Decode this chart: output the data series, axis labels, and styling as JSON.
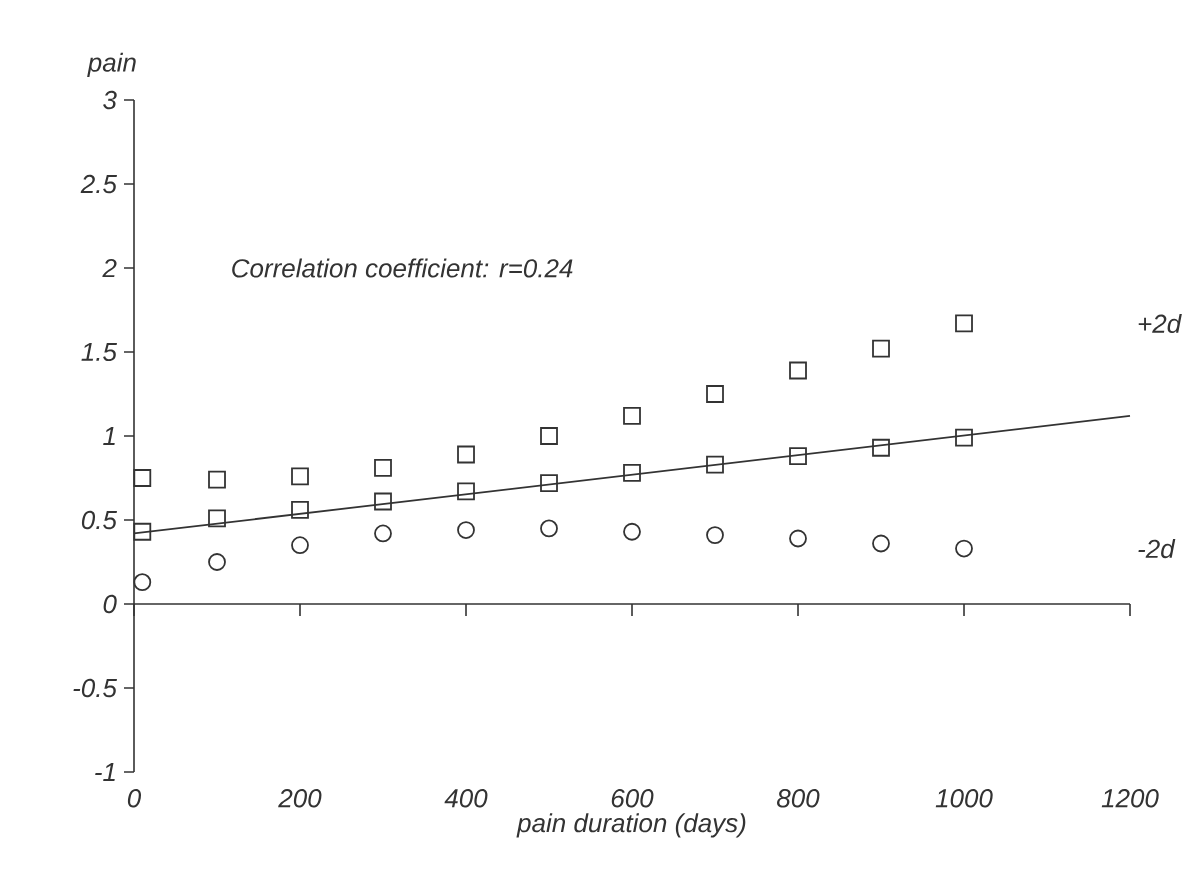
{
  "chart_data": {
    "type": "scatter",
    "xlabel": "pain duration (days)",
    "ylabel": "pain",
    "annotations": [
      "Correlation coefficient: r=0.24"
    ],
    "x": [
      10,
      100,
      200,
      300,
      400,
      500,
      600,
      700,
      800,
      900,
      1000
    ],
    "xlim": [
      0,
      1200
    ],
    "xticks": [
      0,
      200,
      400,
      600,
      800,
      1000,
      1200
    ],
    "ylim": [
      -1,
      3
    ],
    "yticks": [
      -1,
      -0.5,
      0,
      0.5,
      1,
      1.5,
      2,
      2.5,
      3
    ],
    "series": [
      {
        "name": "+2d",
        "color": "#333333",
        "marker": "square",
        "values": [
          0.75,
          0.74,
          0.76,
          0.81,
          0.89,
          1.0,
          1.12,
          1.25,
          1.39,
          1.52,
          1.67
        ]
      },
      {
        "color": "#333333",
        "marker": "square",
        "values": [
          0.43,
          0.51,
          0.56,
          0.61,
          0.67,
          0.72,
          0.78,
          0.83,
          0.88,
          0.93,
          0.99
        ]
      },
      {
        "name": "-2d",
        "color": "#333333",
        "marker": "circle",
        "values": [
          0.13,
          0.25,
          0.35,
          0.42,
          0.44,
          0.45,
          0.43,
          0.41,
          0.39,
          0.36,
          0.33
        ]
      },
      {
        "type": "line",
        "color": "#333333",
        "marker": "none",
        "x": [
          0,
          1200
        ],
        "values": [
          0.42,
          1.12
        ]
      }
    ]
  }
}
